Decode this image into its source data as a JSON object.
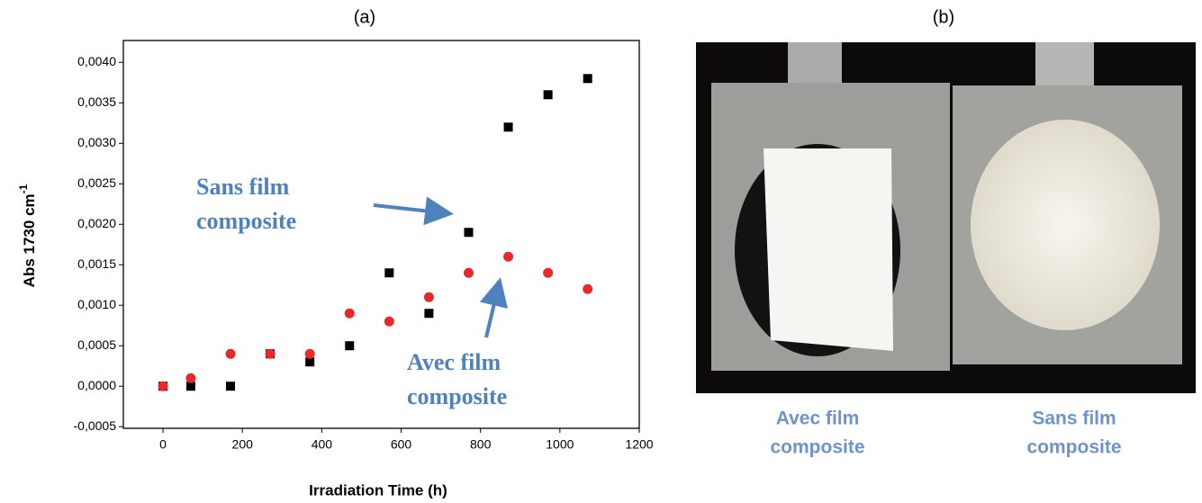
{
  "chart_data": {
    "type": "scatter",
    "title": "(a)",
    "xlabel": "Irradiation Time (h)",
    "ylabel": {
      "text": "Abs 1730 cm",
      "superscript": "-1"
    },
    "x": [
      0,
      70,
      170,
      270,
      370,
      470,
      570,
      670,
      770,
      870,
      970,
      1070
    ],
    "series": [
      {
        "color": "#000000",
        "marker": "square",
        "values": [
          0,
          0,
          0,
          0.0004,
          0.0003,
          0.0005,
          0.0014,
          0.0009,
          0.0019,
          0.0032,
          0.0036,
          0.0038
        ]
      },
      {
        "color": "#e8282b",
        "marker": "circle",
        "values": [
          0,
          0.0001,
          0.0004,
          0.0004,
          0.0004,
          0.0009,
          0.0008,
          0.0011,
          0.0014,
          0.0016,
          0.0014,
          0.0012
        ]
      }
    ],
    "xlim": [
      -100,
      1200
    ],
    "xticks": [
      0,
      200,
      400,
      600,
      800,
      1000,
      1200
    ],
    "ylim": [
      -0.00052,
      0.00427
    ],
    "yticks": [
      {
        "value": -0.0005,
        "label": "-0,0005"
      },
      {
        "value": 0,
        "label": "0,0000"
      },
      {
        "value": 0.0005,
        "label": "0,0005"
      },
      {
        "value": 0.001,
        "label": "0,0010"
      },
      {
        "value": 0.0015,
        "label": "0,0015"
      },
      {
        "value": 0.002,
        "label": "0,0020"
      },
      {
        "value": 0.0025,
        "label": "0,0025"
      },
      {
        "value": 0.003,
        "label": "0,0030"
      },
      {
        "value": 0.0035,
        "label": "0,0035"
      },
      {
        "value": 0.004,
        "label": "0,0040"
      }
    ],
    "grid": false,
    "annotations": [
      [
        "Sans film",
        "composite"
      ],
      [
        "Avec film",
        "composite"
      ]
    ]
  },
  "photo": {
    "title": "(b)",
    "captions": [
      [
        "Avec film",
        "composite"
      ],
      [
        "Sans film",
        "composite"
      ]
    ]
  }
}
